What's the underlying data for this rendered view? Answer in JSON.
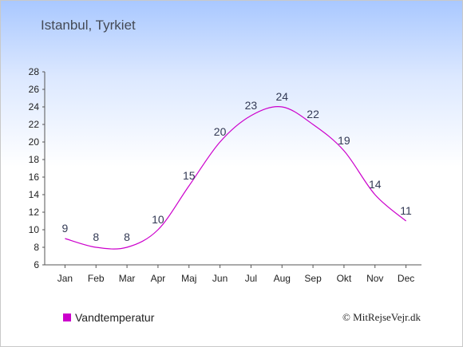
{
  "header": {
    "title": "Istanbul, Tyrkiet"
  },
  "legend": {
    "label": "Vandtemperatur",
    "color": "#cc00cc"
  },
  "footer": {
    "credit": "© MitRejseVejr.dk"
  },
  "chart_data": {
    "type": "line",
    "categories": [
      "Jan",
      "Feb",
      "Mar",
      "Apr",
      "Maj",
      "Jun",
      "Jul",
      "Aug",
      "Sep",
      "Okt",
      "Nov",
      "Dec"
    ],
    "series": [
      {
        "name": "Vandtemperatur",
        "values": [
          9,
          8,
          8,
          10,
          15,
          20,
          23,
          24,
          22,
          19,
          14,
          11
        ],
        "color": "#cc00cc"
      }
    ],
    "yticks": [
      6,
      8,
      10,
      12,
      14,
      16,
      18,
      20,
      22,
      24,
      26,
      28
    ],
    "ylim": [
      6,
      28
    ],
    "grid": false,
    "legend_position": "bottom-left"
  }
}
